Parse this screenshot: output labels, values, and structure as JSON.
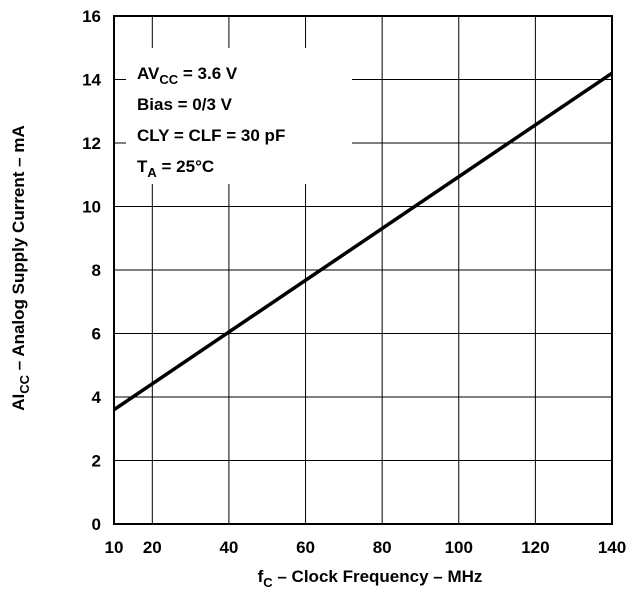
{
  "chart_data": {
    "type": "line",
    "x_ticks": [
      10,
      20,
      40,
      60,
      80,
      100,
      120,
      140
    ],
    "y_ticks": [
      0,
      2,
      4,
      6,
      8,
      10,
      12,
      14,
      16
    ],
    "xlim": [
      10,
      140
    ],
    "ylim": [
      0,
      16
    ],
    "grid": true,
    "xlabel": {
      "main": "f",
      "sub": "C",
      "rest": " – Clock Frequency – MHz"
    },
    "ylabel": {
      "main": "AI",
      "sub": "CC",
      "rest": " – Analog Supply Current – mA"
    },
    "series": [
      {
        "x": [
          10,
          140
        ],
        "y": [
          3.6,
          14.2
        ]
      }
    ],
    "annotations": [
      {
        "main": "AV",
        "sub": "CC",
        "rest": " = 3.6 V"
      },
      {
        "main": "Bias = 0/3 V",
        "sub": "",
        "rest": ""
      },
      {
        "main": "CLY = CLF = 30 pF",
        "sub": "",
        "rest": ""
      },
      {
        "main": "T",
        "sub": "A",
        "rest": " = 25°C"
      }
    ],
    "colors": {
      "line": "#000000",
      "grid": "#000000",
      "background": "#ffffff"
    }
  }
}
